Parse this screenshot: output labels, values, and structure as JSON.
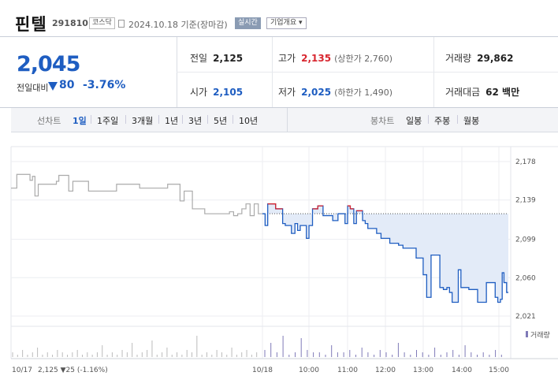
{
  "header": {
    "name": "핀텔",
    "code": "291810",
    "market": "코스닥",
    "date_text": "2024.10.18 기준(장마감)",
    "realtime_label": "실시간",
    "company_label": "기업개요 ▾"
  },
  "summary": {
    "price": "2,045",
    "change_label": "전일대비",
    "change_value": "80",
    "change_pct": "-3.76%",
    "prev_close": {
      "label": "전일",
      "value": "2,125"
    },
    "open": {
      "label": "시가",
      "value": "2,105"
    },
    "high": {
      "label": "고가",
      "value": "2,135",
      "sub": "(상한가 2,760)"
    },
    "low": {
      "label": "저가",
      "value": "2,025",
      "sub": "(하한가 1,490)"
    },
    "volume": {
      "label": "거래량",
      "value": "29,862"
    },
    "amount": {
      "label": "거래대금",
      "value": "62 백만"
    }
  },
  "tabs": {
    "line_label": "선차트",
    "line_periods": [
      "1일",
      "1주일",
      "3개월",
      "1년",
      "3년",
      "5년",
      "10년"
    ],
    "active": "1일",
    "candle_label": "봉차트",
    "candle_periods": [
      "일봉",
      "주봉",
      "월봉"
    ]
  },
  "colors": {
    "up": "#d8262f",
    "down": "#1e5dc1",
    "prev_line": "#aaaaaa",
    "fill": "#e3ebf8"
  },
  "chart_data": {
    "type": "line",
    "y_ticks": [
      "2,178",
      "2,139",
      "2,099",
      "2,060",
      "2,021"
    ],
    "ylim": [
      2021,
      2178
    ],
    "reference_line": 2125,
    "x_ticks": [
      "10/18",
      "10:00",
      "11:00",
      "12:00",
      "13:00",
      "14:00",
      "15:00"
    ],
    "prev_day_label": "10/17",
    "prev_day_summary": "2,125 ▼25 (-1.16%)",
    "volume_label": "거래량",
    "prev_day_series": [
      [
        0,
        2151
      ],
      [
        0.7,
        2165
      ],
      [
        2,
        2165
      ],
      [
        2.3,
        2159
      ],
      [
        2.6,
        2163
      ],
      [
        2.9,
        2143
      ],
      [
        3.3,
        2155
      ],
      [
        4,
        2155
      ],
      [
        5,
        2155
      ],
      [
        5.5,
        2158
      ],
      [
        5.8,
        2164
      ],
      [
        6.7,
        2164
      ],
      [
        7,
        2148
      ],
      [
        7.5,
        2158
      ],
      [
        9,
        2158
      ],
      [
        9.4,
        2148
      ],
      [
        12.4,
        2148
      ],
      [
        12.8,
        2155
      ],
      [
        15.3,
        2155
      ],
      [
        15.6,
        2151
      ],
      [
        18.7,
        2151
      ],
      [
        19,
        2155
      ],
      [
        20,
        2155
      ],
      [
        20.5,
        2138
      ],
      [
        21,
        2148
      ],
      [
        21.5,
        2148
      ],
      [
        22,
        2130
      ],
      [
        23,
        2130
      ],
      [
        23.5,
        2125
      ],
      [
        24.5,
        2125
      ],
      [
        25.5,
        2125
      ],
      [
        26.5,
        2127
      ],
      [
        27,
        2123
      ],
      [
        27.5,
        2125
      ],
      [
        28,
        2130
      ],
      [
        28.5,
        2135
      ],
      [
        29,
        2123
      ],
      [
        29.5,
        2135
      ],
      [
        30,
        2125
      ],
      [
        30.5,
        2125
      ]
    ],
    "today_series": [
      [
        0,
        2125
      ],
      [
        0.3,
        2113
      ],
      [
        0.6,
        2135
      ],
      [
        1,
        2135
      ],
      [
        1.5,
        2130
      ],
      [
        2,
        2130
      ],
      [
        2.3,
        2115
      ],
      [
        2.6,
        2113
      ],
      [
        3,
        2113
      ],
      [
        3.3,
        2105
      ],
      [
        3.7,
        2115
      ],
      [
        4,
        2108
      ],
      [
        4.3,
        2113
      ],
      [
        4.7,
        2113
      ],
      [
        5,
        2100
      ],
      [
        5.3,
        2113
      ],
      [
        5.7,
        2130
      ],
      [
        6,
        2130
      ],
      [
        6.3,
        2133
      ],
      [
        6.6,
        2133
      ],
      [
        6.9,
        2123
      ],
      [
        7.5,
        2123
      ],
      [
        8,
        2118
      ],
      [
        8.3,
        2118
      ],
      [
        8.6,
        2125
      ],
      [
        9,
        2125
      ],
      [
        9.4,
        2115
      ],
      [
        9.7,
        2133
      ],
      [
        10,
        2130
      ],
      [
        10.4,
        2115
      ],
      [
        10.7,
        2128
      ],
      [
        11,
        2128
      ],
      [
        11.4,
        2118
      ],
      [
        11.7,
        2115
      ],
      [
        12,
        2110
      ],
      [
        12.5,
        2110
      ],
      [
        13,
        2105
      ],
      [
        13.5,
        2100
      ],
      [
        14,
        2100
      ],
      [
        14.5,
        2095
      ],
      [
        15,
        2095
      ],
      [
        15.5,
        2093
      ],
      [
        16,
        2090
      ],
      [
        16.5,
        2090
      ],
      [
        17,
        2090
      ],
      [
        17.5,
        2080
      ],
      [
        18,
        2080
      ],
      [
        18.3,
        2063
      ],
      [
        18.5,
        2063
      ],
      [
        18.7,
        2040
      ],
      [
        19,
        2040
      ],
      [
        19.2,
        2083
      ],
      [
        19.6,
        2083
      ],
      [
        20,
        2083
      ],
      [
        20.2,
        2050
      ],
      [
        20.6,
        2048
      ],
      [
        21,
        2050
      ],
      [
        21.3,
        2045
      ],
      [
        21.6,
        2035
      ],
      [
        22,
        2035
      ],
      [
        22.3,
        2068
      ],
      [
        22.6,
        2050
      ],
      [
        23,
        2050
      ],
      [
        23.5,
        2048
      ],
      [
        24,
        2048
      ],
      [
        24.5,
        2035
      ],
      [
        25,
        2035
      ],
      [
        25.5,
        2055
      ],
      [
        26,
        2055
      ],
      [
        26.5,
        2040
      ],
      [
        26.8,
        2035
      ],
      [
        27.1,
        2038
      ],
      [
        27.3,
        2065
      ],
      [
        27.5,
        2055
      ],
      [
        27.8,
        2045
      ],
      [
        28,
        2045
      ]
    ],
    "volume_prev": [
      2,
      1,
      3,
      1,
      2,
      4,
      1,
      2,
      1,
      3,
      2,
      1,
      2,
      3,
      1,
      2,
      1,
      2,
      5,
      1,
      2,
      1,
      3,
      2,
      6,
      1,
      2,
      3,
      7,
      1,
      2,
      4,
      1,
      2,
      1,
      3,
      2,
      9,
      1,
      2,
      1,
      3,
      2,
      1,
      4,
      1,
      2,
      3,
      1,
      2
    ],
    "volume_today": [
      3,
      6,
      2,
      9,
      1,
      2,
      8,
      3,
      2,
      2,
      1,
      5,
      2,
      2,
      3,
      1,
      4,
      2,
      1,
      3,
      2,
      1,
      6,
      2,
      1,
      3,
      2,
      1,
      4,
      1,
      2,
      3,
      1,
      5,
      2,
      1,
      2,
      1,
      3,
      1
    ]
  }
}
